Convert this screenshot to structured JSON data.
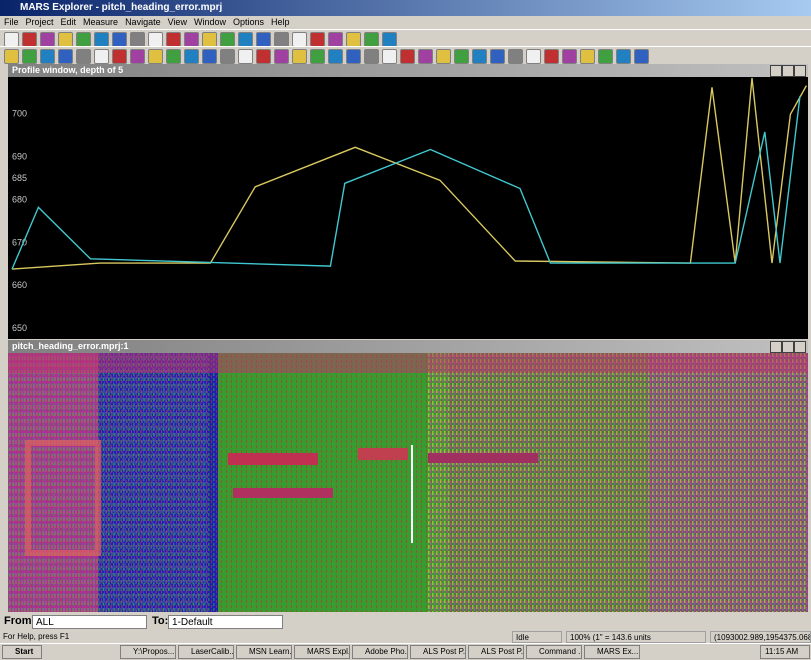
{
  "window": {
    "title": "MARS Explorer - pitch_heading_error.mprj",
    "menu": [
      "File",
      "Project",
      "Edit",
      "Measure",
      "Navigate",
      "View",
      "Window",
      "Options",
      "Help"
    ]
  },
  "profile_window": {
    "title": "Profile window, depth of 5"
  },
  "chart_data": {
    "type": "line",
    "xlim": [
      0,
      100
    ],
    "ylim": [
      647.6,
      708.7
    ],
    "yticks": [
      650,
      660,
      670,
      680,
      685,
      690,
      700
    ],
    "series": [
      {
        "color": "#d8c860",
        "x": [
          0.5,
          11.5,
          25.3,
          30.9,
          43.4,
          54,
          63.4,
          85.3,
          88,
          90.9,
          93,
          95.5,
          97.8,
          99.8
        ],
        "values": [
          663.9,
          665.3,
          665.3,
          683.1,
          692.3,
          684.6,
          665.8,
          665.3,
          706.3,
          665.3,
          708.5,
          665.3,
          700,
          706.7
        ]
      },
      {
        "color": "#40c8d0",
        "x": [
          0.5,
          3.8,
          10.3,
          40.3,
          42.1,
          52.8,
          64,
          67.8,
          90.9,
          94.6,
          96.5,
          99
        ],
        "values": [
          663.9,
          678.3,
          666.3,
          664.6,
          683.9,
          691.8,
          682.7,
          665.3,
          665.3,
          695.9,
          665.3,
          704.3
        ]
      }
    ]
  },
  "image_window": {
    "title": "pitch_heading_error.mprj:1"
  },
  "selector": {
    "from_label": "From:",
    "from_value": "ALL",
    "to_label": "To:",
    "to_value": "1-Default"
  },
  "status_bar": {
    "help": "For Help, press F1",
    "state": "Idle",
    "zoom": "100% (1\" = 143.6 units",
    "coords": "(1093002.989,1954375.068"
  },
  "taskbar": {
    "start": "Start",
    "buttons": [
      "Y:\\Propos...",
      "LaserCalib...",
      "MSN Learn...",
      "MARS Expl...",
      "Adobe Pho...",
      "ALS Post P...",
      "ALS Post P...",
      "Command ...",
      "MARS Ex..."
    ],
    "clock": "11:15 AM"
  }
}
